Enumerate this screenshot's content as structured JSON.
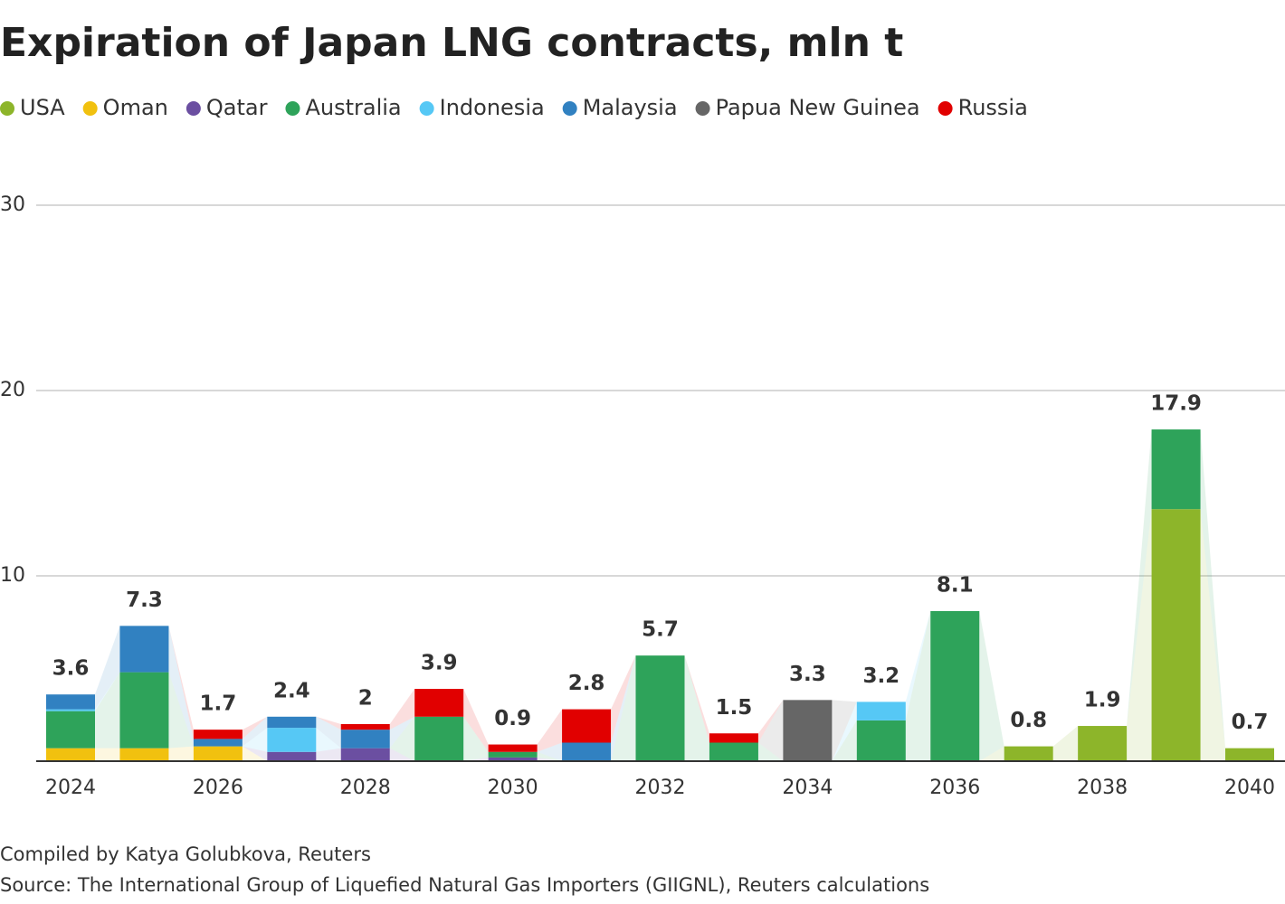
{
  "chart_data": {
    "type": "stacked-bar",
    "title": "Expiration of Japan LNG contracts, mln t",
    "categories": [
      "2024",
      null,
      "2026",
      null,
      "2028",
      null,
      "2030",
      null,
      "2032",
      null,
      "2034",
      null,
      "2036",
      null,
      "2038",
      null,
      "2040"
    ],
    "series": [
      {
        "name": "USA",
        "color": "#8db52a",
        "values": [
          0,
          0,
          0,
          0,
          0,
          0,
          0,
          0,
          0,
          0,
          0,
          0,
          0,
          0.8,
          1.9,
          13.6,
          0.7
        ]
      },
      {
        "name": "Oman",
        "color": "#f1c10f",
        "values": [
          0.7,
          0.7,
          0.8,
          0,
          0,
          0,
          0,
          0,
          0,
          0,
          0,
          0,
          0,
          0,
          0,
          0,
          0
        ]
      },
      {
        "name": "Qatar",
        "color": "#6b4fa1",
        "values": [
          0,
          0,
          0,
          0.5,
          0.7,
          0,
          0.2,
          0,
          0,
          0,
          0,
          0,
          0,
          0,
          0,
          0,
          0
        ]
      },
      {
        "name": "Australia",
        "color": "#2ea35a",
        "values": [
          2.0,
          4.1,
          0,
          0,
          0,
          2.4,
          0.3,
          0,
          5.7,
          1.0,
          0,
          2.2,
          8.1,
          0,
          0,
          4.3,
          0
        ]
      },
      {
        "name": "Indonesia",
        "color": "#56c8f5",
        "values": [
          0.1,
          0,
          0,
          1.3,
          0,
          0,
          0,
          0,
          0,
          0,
          0,
          1.0,
          0,
          0,
          0,
          0,
          0
        ]
      },
      {
        "name": "Malaysia",
        "color": "#3181c1",
        "values": [
          0.8,
          2.5,
          0.4,
          0.6,
          1.0,
          0,
          0,
          1.0,
          0,
          0,
          0,
          0,
          0,
          0,
          0,
          0,
          0
        ]
      },
      {
        "name": "Papua New Guinea",
        "color": "#666666",
        "values": [
          0,
          0,
          0,
          0,
          0,
          0,
          0,
          0,
          0,
          0,
          3.3,
          0,
          0,
          0,
          0,
          0,
          0
        ]
      },
      {
        "name": "Russia",
        "color": "#e10000",
        "values": [
          0,
          0,
          0.5,
          0,
          0.3,
          1.5,
          0.4,
          1.8,
          0,
          0.5,
          0,
          0,
          0,
          0,
          0,
          0,
          0
        ]
      }
    ],
    "totals": [
      3.6,
      7.3,
      1.7,
      2.4,
      2,
      3.9,
      0.9,
      2.8,
      5.7,
      1.5,
      3.3,
      3.2,
      8.1,
      0.8,
      1.9,
      17.9,
      0.7
    ],
    "ylim": [
      0,
      30
    ],
    "yticks": [
      10,
      20,
      30
    ],
    "grid": true,
    "notes": [
      "Compiled by Katya Golubkova, Reuters",
      "Source: The International Group of Liquefied Natural Gas Importers (GIIGNL), Reuters calculations"
    ]
  }
}
